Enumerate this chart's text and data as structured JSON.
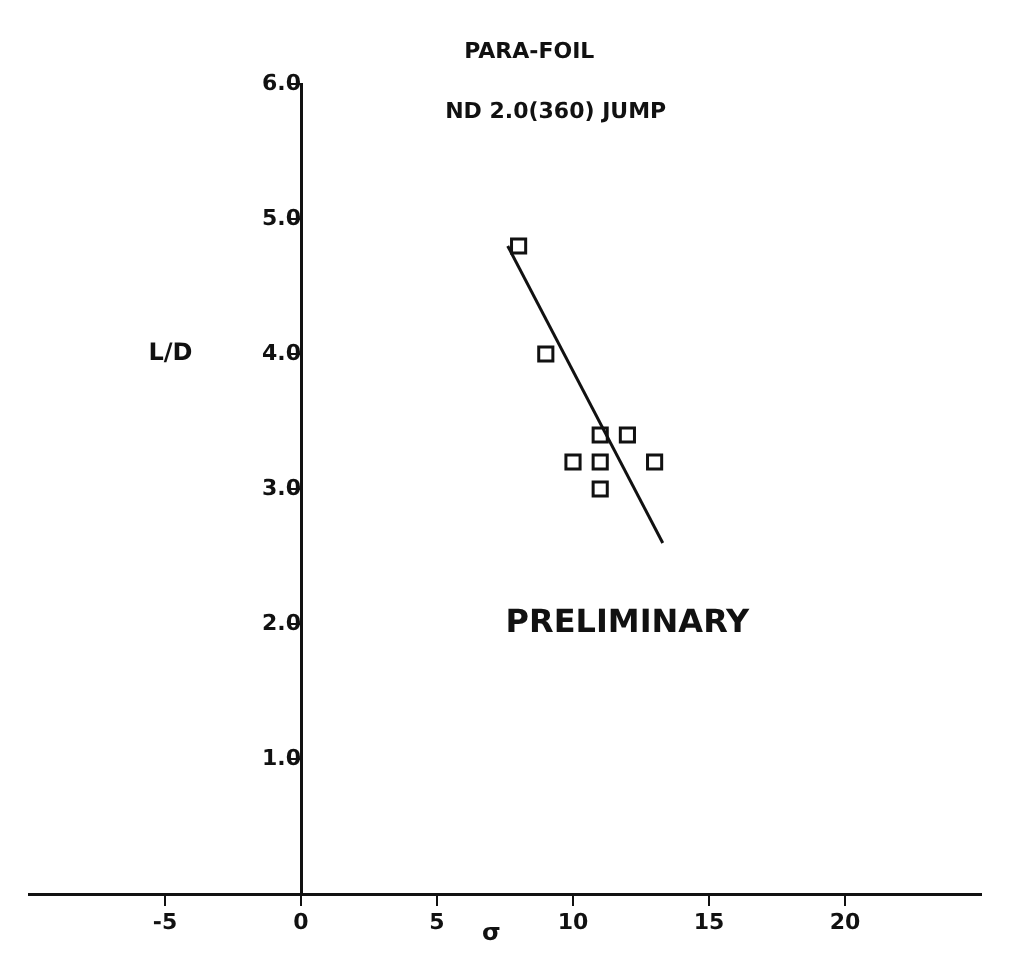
{
  "chart_data": {
    "type": "scatter",
    "title": "PARA-FOIL",
    "subtitle": "ND 2.0(360) JUMP",
    "xlabel": "σ",
    "ylabel": "L/D",
    "annotations": [
      "PRELIMINARY"
    ],
    "xlim": [
      -10,
      25
    ],
    "xticks": [
      -5,
      0,
      5,
      10,
      15,
      20
    ],
    "ylim": [
      0,
      6
    ],
    "yticks": [
      {
        "value": 1,
        "label": "1.0"
      },
      {
        "value": 2,
        "label": "2.0"
      },
      {
        "value": 3,
        "label": "3.0"
      },
      {
        "value": 4,
        "label": "4.0"
      },
      {
        "value": 5,
        "label": "5.0"
      },
      {
        "value": 6,
        "label": "6.0"
      }
    ],
    "grid": false,
    "series": [
      {
        "color": "#111111",
        "marker": "square",
        "x": [
          8,
          9,
          11,
          12,
          10,
          11,
          13,
          11
        ],
        "values": [
          4.8,
          4.0,
          3.4,
          3.4,
          3.2,
          3.2,
          3.2,
          3.0
        ]
      },
      {
        "type": "line",
        "color": "#111111",
        "marker": "none",
        "line_style": "solid",
        "x": [
          7.6,
          13.3
        ],
        "values": [
          4.8,
          2.6
        ]
      }
    ]
  }
}
